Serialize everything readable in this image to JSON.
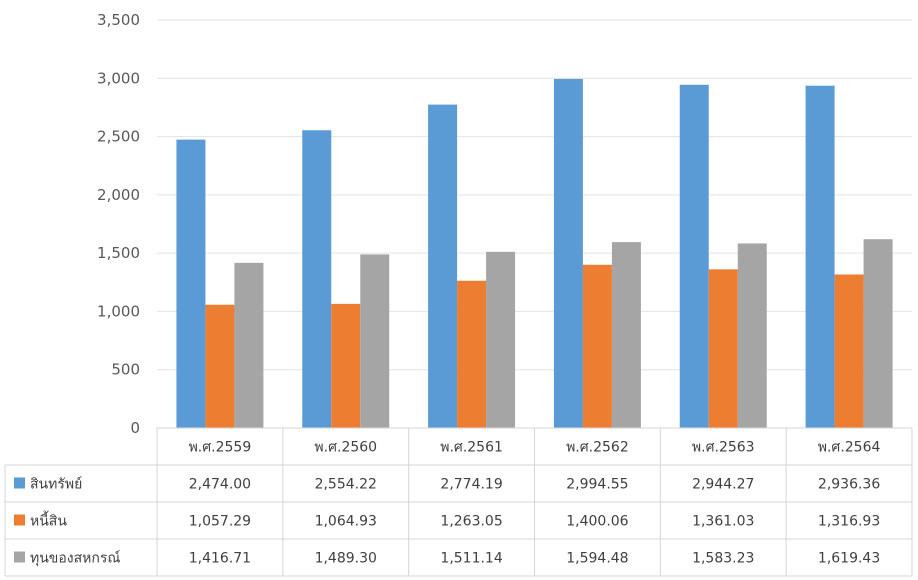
{
  "chart_data": {
    "type": "bar",
    "categories": [
      "พ.ศ.2559",
      "พ.ศ.2560",
      "พ.ศ.2561",
      "พ.ศ.2562",
      "พ.ศ.2563",
      "พ.ศ.2564"
    ],
    "series": [
      {
        "name": "สินทรัพย์",
        "color": "#5b9bd5",
        "values": [
          2474.0,
          2554.22,
          2774.19,
          2994.55,
          2944.27,
          2936.36
        ],
        "labels": [
          "2,474.00",
          "2,554.22",
          "2,774.19",
          "2,994.55",
          "2,944.27",
          "2,936.36"
        ]
      },
      {
        "name": "หนี้สิน",
        "color": "#ed7d31",
        "values": [
          1057.29,
          1064.93,
          1263.05,
          1400.06,
          1361.03,
          1316.93
        ],
        "labels": [
          "1,057.29",
          "1,064.93",
          "1,263.05",
          "1,400.06",
          "1,361.03",
          "1,316.93"
        ]
      },
      {
        "name": "ทุนของสหกรณ์",
        "color": "#a5a5a5",
        "values": [
          1416.71,
          1489.3,
          1511.14,
          1594.48,
          1583.23,
          1619.43
        ],
        "labels": [
          "1,416.71",
          "1,489.30",
          "1,511.14",
          "1,594.48",
          "1,583.23",
          "1,619.43"
        ]
      }
    ],
    "ylim": [
      0,
      3500
    ],
    "yticks": [
      0,
      500,
      1000,
      1500,
      2000,
      2500,
      3000,
      3500
    ],
    "ytick_labels": [
      "0",
      "500",
      "1,000",
      "1,500",
      "2,000",
      "2,500",
      "3,000",
      "3,500"
    ],
    "grid": true,
    "legend": "data-table"
  }
}
